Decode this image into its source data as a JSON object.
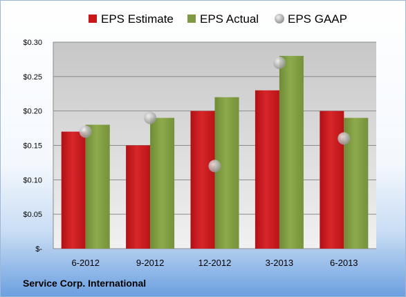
{
  "chart_data": {
    "type": "bar",
    "categories": [
      "6-2012",
      "9-2012",
      "12-2012",
      "3-2013",
      "6-2013"
    ],
    "series": [
      {
        "name": "EPS Estimate",
        "kind": "bar",
        "values": [
          0.17,
          0.15,
          0.2,
          0.23,
          0.2
        ],
        "color": "#c8161a"
      },
      {
        "name": "EPS Actual",
        "kind": "bar",
        "values": [
          0.18,
          0.19,
          0.22,
          0.28,
          0.19
        ],
        "color": "#7f9a42"
      },
      {
        "name": "EPS GAAP",
        "kind": "point",
        "values": [
          0.17,
          0.19,
          0.12,
          0.27,
          0.16
        ],
        "color": "#a9a9a9"
      }
    ],
    "yticks": [
      {
        "value": 0.3,
        "label": "$0.30"
      },
      {
        "value": 0.25,
        "label": "$0.25"
      },
      {
        "value": 0.2,
        "label": "$0.20"
      },
      {
        "value": 0.15,
        "label": "$0.15"
      },
      {
        "value": 0.1,
        "label": "$0.10"
      },
      {
        "value": 0.05,
        "label": "$0.05"
      },
      {
        "value": 0.0,
        "label": "$-"
      }
    ],
    "ylim": [
      0,
      0.3
    ],
    "grid": true,
    "legend_position": "top",
    "company": "Service Corp. International"
  }
}
